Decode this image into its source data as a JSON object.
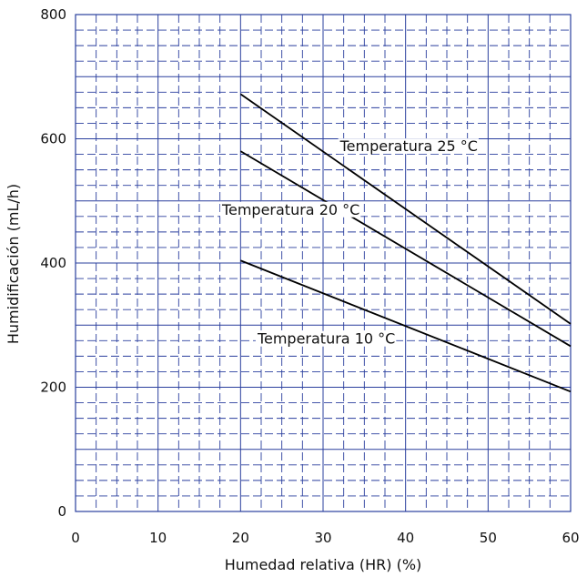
{
  "chart_data": {
    "type": "line",
    "xlabel": "Humedad relativa (HR) (%)",
    "ylabel": "Humidificación (mL/h)",
    "xlim": [
      0,
      60
    ],
    "ylim": [
      0,
      800
    ],
    "x_ticks": [
      "0",
      "10",
      "20",
      "30",
      "40",
      "50",
      "60"
    ],
    "y_ticks": [
      "0",
      "200",
      "400",
      "600",
      "800"
    ],
    "grid": true,
    "series": [
      {
        "name": "Temperatura 25 °C",
        "x": [
          20,
          60
        ],
        "y": [
          672,
          302
        ]
      },
      {
        "name": "Temperatura 20 °C",
        "x": [
          20,
          60
        ],
        "y": [
          580,
          266
        ]
      },
      {
        "name": "Temperatura 10 °C",
        "x": [
          20,
          60
        ],
        "y": [
          404,
          193
        ]
      }
    ]
  }
}
